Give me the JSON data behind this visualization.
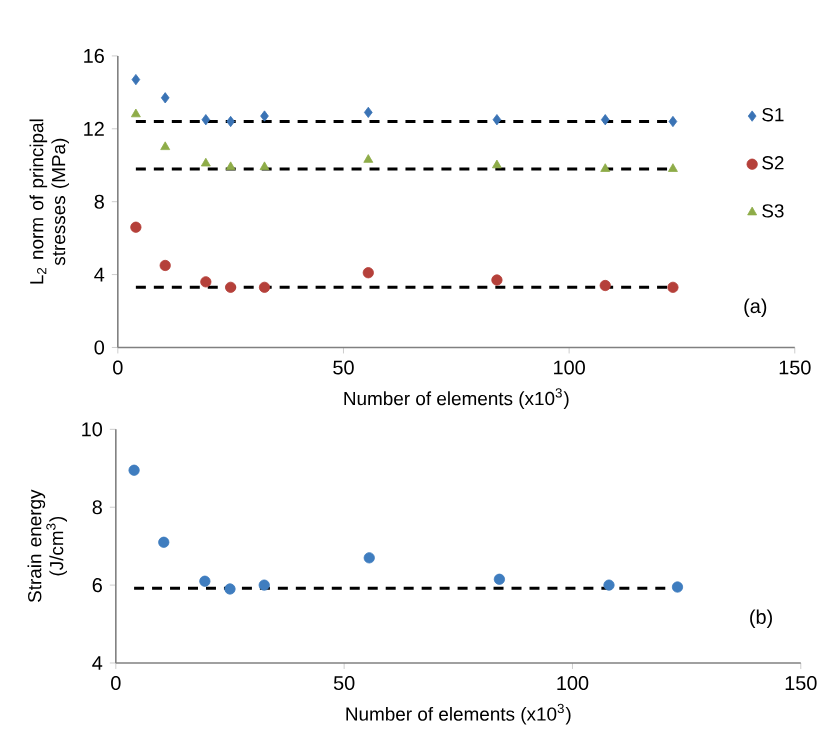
{
  "chart_data": [
    {
      "type": "scatter",
      "xlabel": "Number of elements (x10$^{3}$)",
      "ylabel": "L$_{2}$ norm of principal stresses (MPa)",
      "x": [
        4,
        10.5,
        19.5,
        25,
        32.5,
        55.5,
        84,
        108,
        123
      ],
      "series": [
        {
          "name": "S1",
          "color": "#3a73b5",
          "marker": "diamond",
          "values": [
            14.7,
            13.7,
            12.5,
            12.4,
            12.7,
            12.9,
            12.5,
            12.5,
            12.4
          ]
        },
        {
          "name": "S2",
          "color": "#b5403a",
          "marker": "circle",
          "values": [
            6.6,
            4.5,
            3.6,
            3.3,
            3.3,
            4.1,
            3.7,
            3.4,
            3.3
          ]
        },
        {
          "name": "S3",
          "color": "#8eac48",
          "marker": "triangle",
          "values": [
            12.8,
            11,
            10.1,
            9.9,
            9.9,
            10.3,
            10,
            9.8,
            9.8
          ]
        }
      ],
      "ref_lines": [
        {
          "axis": "y",
          "value": 12.4,
          "color": "#000000",
          "line_style": "dashed"
        },
        {
          "axis": "y",
          "value": 9.8,
          "color": "#000000",
          "line_style": "dashed"
        },
        {
          "axis": "y",
          "value": 3.3,
          "color": "#000000",
          "line_style": "dashed"
        }
      ],
      "xlim": [
        0,
        150
      ],
      "xticks": [
        0,
        50,
        100,
        150
      ],
      "ylim": [
        0,
        16
      ],
      "yticks": [
        0,
        4,
        8,
        12,
        16
      ],
      "grid": false,
      "legend": "right",
      "annotations": [
        "(a)"
      ]
    },
    {
      "type": "scatter",
      "xlabel": "Number of elements (x10$^{3}$)",
      "ylabel": "Strain energy (J/cm$^{3}$)",
      "x": [
        4,
        10.5,
        19.5,
        25,
        32.5,
        55.5,
        84,
        108,
        123
      ],
      "series": [
        {
          "color": "#3f7dbf",
          "marker": "circle",
          "values": [
            8.95,
            7.1,
            6.1,
            5.9,
            6,
            6.7,
            6.15,
            6,
            5.95
          ]
        }
      ],
      "ref_lines": [
        {
          "axis": "y",
          "value": 5.92,
          "color": "#000000",
          "line_style": "dashed"
        }
      ],
      "xlim": [
        0,
        150
      ],
      "xticks": [
        0,
        50,
        100,
        150
      ],
      "ylim": [
        4,
        10
      ],
      "yticks": [
        4,
        6,
        8,
        10
      ],
      "grid": false,
      "legend": false,
      "annotations": [
        "(b)"
      ]
    }
  ]
}
